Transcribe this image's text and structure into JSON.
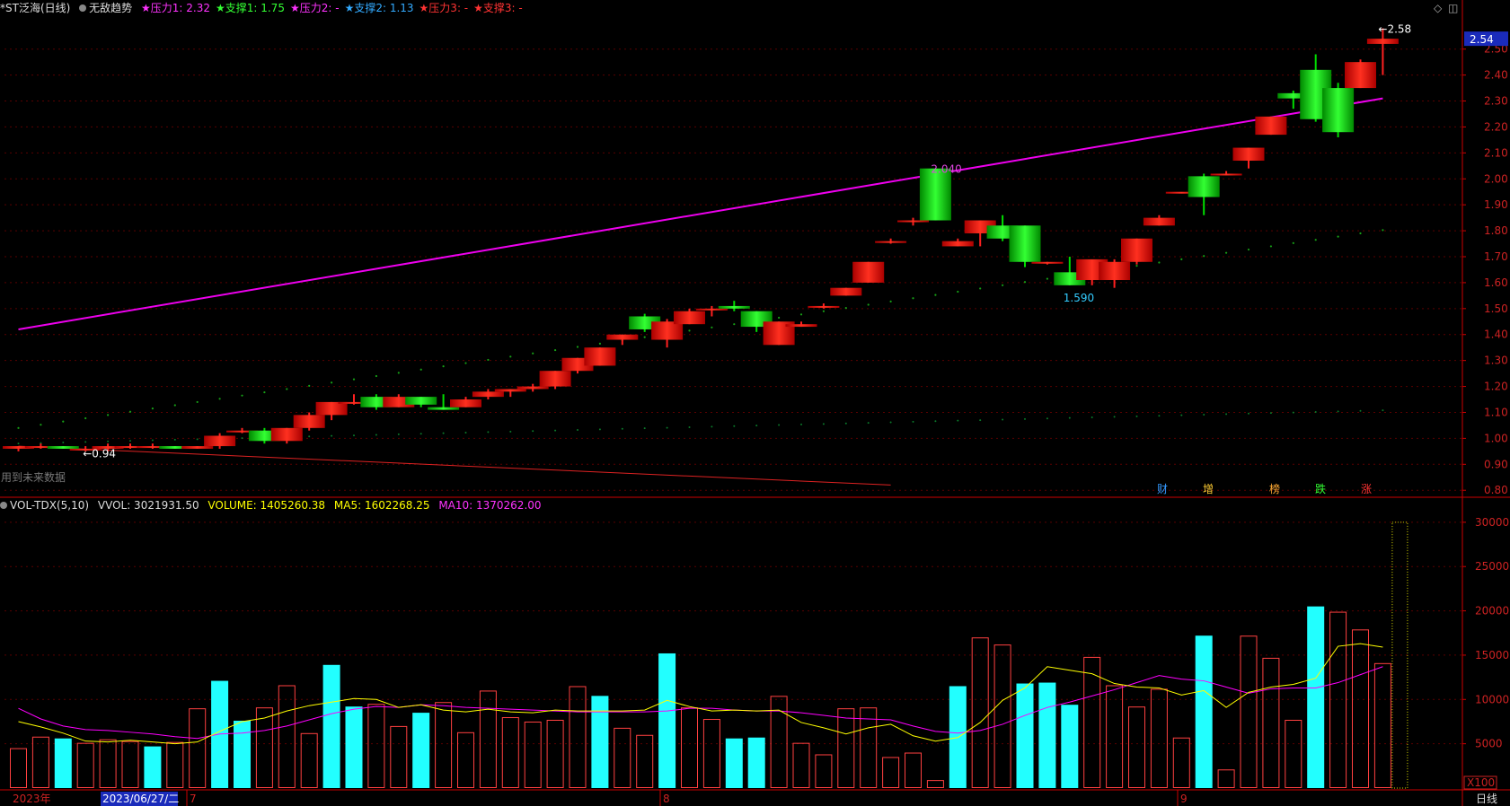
{
  "header": {
    "stock_name": "*ST泛海",
    "period": "(日线)",
    "indicator": "无敌趋势",
    "items": [
      {
        "label": "★压力1: 2.32",
        "color": "#ff33ff"
      },
      {
        "label": "★支撑1: 1.75",
        "color": "#33ff33"
      },
      {
        "label": "★压力2: -",
        "color": "#ff33ff"
      },
      {
        "label": "★支撑2: 1.13",
        "color": "#33aaff"
      },
      {
        "label": "★压力3: -",
        "color": "#ff3333"
      },
      {
        "label": "★支撑3: -",
        "color": "#ff3333"
      }
    ],
    "diamond_icon": "diamond-icon",
    "window_icon": "restore-window-icon"
  },
  "volume_header": {
    "name": "VOL-TDX(5,10)",
    "vvol": "VVOL: 3021931.50",
    "volume": "VOLUME: 1405260.38",
    "ma5": "MA5: 1602268.25",
    "ma10": "MA10: 1370262.00"
  },
  "annotations": {
    "low_label": "←0.94",
    "high_label": "←2.58",
    "peak_label": "2.040",
    "dip_label": "1.590",
    "current_price": "2.54",
    "left_note": "用到未来数据",
    "events": [
      "财",
      "增",
      "榜",
      "跌",
      "涨"
    ]
  },
  "footer": {
    "year": "2023年",
    "date": "2023/06/27/二",
    "months": [
      "7",
      "8",
      "9"
    ],
    "scale": "X100",
    "period_button": "日线"
  },
  "colors": {
    "up": "#ff2020",
    "down": "#00dd00",
    "vol_up": "#ff4040",
    "vol_down": "#22ffff",
    "trend": "#ee00ee",
    "ma5": "#ffff00",
    "ma10": "#ff00ff",
    "axis": "#cc0000"
  },
  "chart_data": [
    {
      "type": "candlestick",
      "title": "*ST泛海 (日线)",
      "ylim": [
        0.78,
        2.62
      ],
      "y_ticks": [
        0.8,
        0.9,
        1.0,
        1.1,
        1.2,
        1.3,
        1.4,
        1.5,
        1.6,
        1.7,
        1.8,
        1.9,
        2.0,
        2.1,
        2.2,
        2.3,
        2.4,
        2.5
      ],
      "ohlc": [
        [
          0.96,
          0.97,
          0.95,
          0.97
        ],
        [
          0.97,
          0.98,
          0.96,
          0.97
        ],
        [
          0.97,
          0.97,
          0.96,
          0.96
        ],
        [
          0.96,
          0.97,
          0.95,
          0.96
        ],
        [
          0.96,
          0.98,
          0.95,
          0.97
        ],
        [
          0.97,
          0.98,
          0.96,
          0.97
        ],
        [
          0.97,
          0.98,
          0.96,
          0.97
        ],
        [
          0.97,
          0.97,
          0.96,
          0.96
        ],
        [
          0.96,
          0.97,
          0.96,
          0.97
        ],
        [
          0.97,
          1.02,
          0.96,
          1.01
        ],
        [
          1.03,
          1.04,
          1.02,
          1.03
        ],
        [
          1.03,
          1.04,
          0.98,
          0.99
        ],
        [
          0.99,
          1.04,
          0.98,
          1.04
        ],
        [
          1.04,
          1.1,
          1.03,
          1.09
        ],
        [
          1.09,
          1.14,
          1.07,
          1.14
        ],
        [
          1.14,
          1.17,
          1.13,
          1.14
        ],
        [
          1.16,
          1.17,
          1.11,
          1.12
        ],
        [
          1.12,
          1.17,
          1.12,
          1.16
        ],
        [
          1.16,
          1.16,
          1.12,
          1.13
        ],
        [
          1.12,
          1.17,
          1.11,
          1.11
        ],
        [
          1.12,
          1.16,
          1.12,
          1.15
        ],
        [
          1.16,
          1.19,
          1.15,
          1.18
        ],
        [
          1.18,
          1.19,
          1.16,
          1.19
        ],
        [
          1.19,
          1.21,
          1.18,
          1.2
        ],
        [
          1.2,
          1.26,
          1.19,
          1.26
        ],
        [
          1.26,
          1.31,
          1.25,
          1.31
        ],
        [
          1.28,
          1.35,
          1.28,
          1.35
        ],
        [
          1.38,
          1.4,
          1.36,
          1.4
        ],
        [
          1.47,
          1.48,
          1.41,
          1.42
        ],
        [
          1.38,
          1.46,
          1.35,
          1.45
        ],
        [
          1.44,
          1.5,
          1.44,
          1.49
        ],
        [
          1.5,
          1.51,
          1.47,
          1.5
        ],
        [
          1.51,
          1.53,
          1.49,
          1.5
        ],
        [
          1.49,
          1.49,
          1.41,
          1.43
        ],
        [
          1.36,
          1.45,
          1.36,
          1.45
        ],
        [
          1.43,
          1.45,
          1.43,
          1.44
        ],
        [
          1.51,
          1.52,
          1.5,
          1.51
        ],
        [
          1.55,
          1.58,
          1.55,
          1.58
        ],
        [
          1.6,
          1.68,
          1.6,
          1.68
        ],
        [
          1.76,
          1.77,
          1.75,
          1.76
        ],
        [
          1.84,
          1.85,
          1.82,
          1.84
        ],
        [
          2.04,
          2.04,
          1.84,
          1.84
        ],
        [
          1.74,
          1.77,
          1.74,
          1.76
        ],
        [
          1.79,
          1.84,
          1.74,
          1.84
        ],
        [
          1.82,
          1.86,
          1.76,
          1.77
        ],
        [
          1.82,
          1.82,
          1.66,
          1.68
        ],
        [
          1.68,
          1.68,
          1.67,
          1.68
        ],
        [
          1.64,
          1.7,
          1.59,
          1.59
        ],
        [
          1.61,
          1.68,
          1.59,
          1.69
        ],
        [
          1.61,
          1.69,
          1.58,
          1.68
        ],
        [
          1.68,
          1.77,
          1.67,
          1.77
        ],
        [
          1.82,
          1.86,
          1.82,
          1.85
        ],
        [
          1.95,
          1.95,
          1.95,
          1.95
        ],
        [
          2.01,
          2.02,
          1.86,
          1.93
        ],
        [
          2.02,
          2.03,
          2.02,
          2.02
        ],
        [
          2.07,
          2.12,
          2.04,
          2.12
        ],
        [
          2.17,
          2.24,
          2.17,
          2.24
        ],
        [
          2.33,
          2.34,
          2.27,
          2.31
        ],
        [
          2.42,
          2.48,
          2.22,
          2.23
        ],
        [
          2.35,
          2.37,
          2.16,
          2.18
        ],
        [
          2.35,
          2.46,
          2.35,
          2.45
        ],
        [
          2.52,
          2.58,
          2.4,
          2.54
        ]
      ],
      "trend_line": [
        [
          0,
          1.42
        ],
        [
          61,
          2.31
        ]
      ],
      "support_line": [
        [
          0,
          0.97
        ],
        [
          39,
          0.82
        ]
      ]
    },
    {
      "type": "bar",
      "title": "VOL-TDX(5,10)",
      "ylim": [
        0,
        31000
      ],
      "y_ticks": [
        5000,
        10000,
        15000,
        20000,
        25000,
        30000
      ],
      "values": [
        4500,
        5800,
        5600,
        5100,
        5500,
        5300,
        4700,
        5200,
        9000,
        12100,
        7600,
        9100,
        11600,
        6200,
        13900,
        9200,
        9500,
        7000,
        8500,
        9700,
        6300,
        11000,
        8000,
        7500,
        7700,
        11500,
        10400,
        6800,
        6000,
        15200,
        9100,
        7800,
        5600,
        5700,
        10400,
        5100,
        3800,
        9000,
        9100,
        3500,
        4000,
        900,
        11500,
        17000,
        16200,
        11800,
        11900,
        9400,
        14800,
        11600,
        9200,
        11200,
        5700,
        17200,
        2100,
        17200,
        14700,
        7700,
        20500,
        19900,
        17900,
        14100
      ],
      "up": [
        1,
        1,
        0,
        1,
        1,
        1,
        0,
        1,
        1,
        0,
        0,
        1,
        1,
        1,
        0,
        0,
        1,
        1,
        0,
        1,
        1,
        1,
        1,
        1,
        1,
        1,
        0,
        1,
        1,
        0,
        1,
        1,
        0,
        0,
        1,
        1,
        1,
        1,
        1,
        1,
        1,
        1,
        0,
        1,
        1,
        0,
        0,
        0,
        1,
        1,
        1,
        1,
        1,
        0,
        1,
        1,
        1,
        1,
        0,
        1,
        1,
        1
      ],
      "ma5": [
        7500,
        6900,
        6200,
        5300,
        5200,
        5400,
        5200,
        5000,
        5200,
        6400,
        7500,
        7900,
        8700,
        9300,
        9700,
        10100,
        10000,
        9100,
        9400,
        8800,
        8600,
        8900,
        8600,
        8500,
        8800,
        8700,
        8700,
        8700,
        8800,
        9900,
        9200,
        8700,
        8800,
        8700,
        8800,
        7400,
        6800,
        6100,
        6800,
        7200,
        5900,
        5300,
        5700,
        7400,
        9900,
        11300,
        13700,
        13300,
        12900,
        11800,
        11400,
        11300,
        10500,
        11000,
        9100,
        10800,
        11400,
        11700,
        12400,
        16000,
        16300,
        15900
      ],
      "ma10": [
        9000,
        7800,
        7000,
        6600,
        6500,
        6300,
        6100,
        5800,
        5600,
        6100,
        6200,
        6500,
        7000,
        7700,
        8400,
        8900,
        9200,
        9100,
        9400,
        9300,
        9100,
        9000,
        8900,
        8800,
        8700,
        8600,
        8600,
        8600,
        8600,
        8700,
        9000,
        9000,
        8800,
        8700,
        8700,
        8500,
        8200,
        7900,
        7800,
        7700,
        7000,
        6400,
        6200,
        6500,
        7200,
        8200,
        9100,
        9700,
        10400,
        11100,
        11900,
        12700,
        12300,
        12100,
        11400,
        10700,
        11200,
        11300,
        11300,
        11900,
        12800,
        13700
      ],
      "current_dashed_box": 30000
    }
  ]
}
